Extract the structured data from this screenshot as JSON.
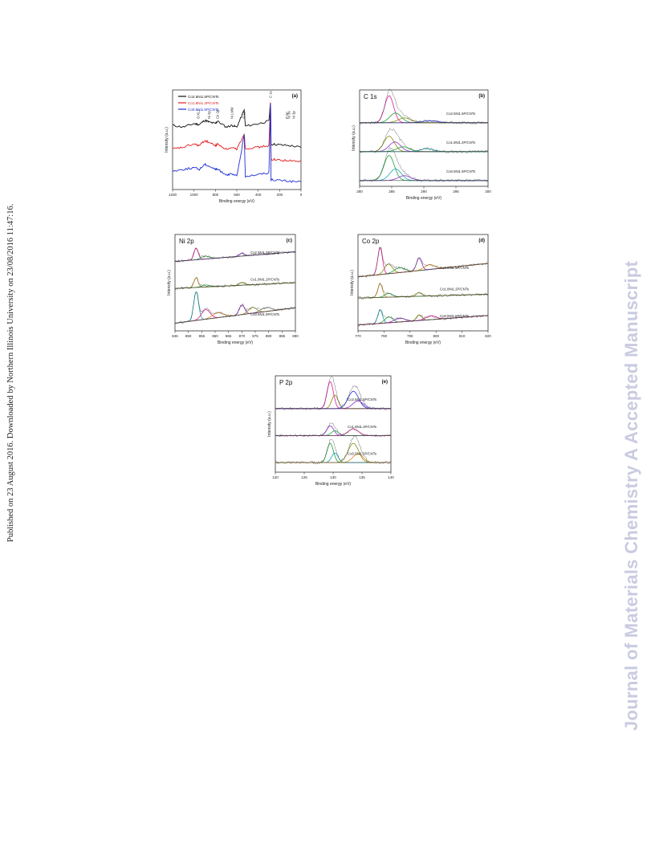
{
  "side_text": "Published on 23 August 2016. Downloaded by Northern Illinois University on 23/08/2016 11:47:16.",
  "watermark": "Journal of Materials Chemistry A Accepted Manuscript",
  "colors": {
    "black": "#111111",
    "red": "#e11d1d",
    "blue": "#1f2fd6",
    "magenta": "#e0189c",
    "green": "#1aa33a",
    "olive": "#8a8a10",
    "cyan": "#17a2b8",
    "purple": "#8d2cc9",
    "orange": "#d98a1a",
    "gray": "#888888"
  },
  "chart_data": [
    {
      "panel": "(a)",
      "type": "line",
      "title": "",
      "xlabel": "Binding energy (eV)",
      "ylabel": "Intensity (a.u.)",
      "xlim": [
        1200,
        0
      ],
      "x_ticks": [
        "1200",
        "1000",
        "800",
        "600",
        "400",
        "200",
        "0"
      ],
      "x_reversed": true,
      "legend": [
        "Co2.5Ni1.5P/CNTs",
        "Co1.8Ni1.2P/CNTs",
        "Co0.5Ni1.5P/CNTs"
      ],
      "peak_labels": [
        {
          "text": "O KLL",
          "x": 960
        },
        {
          "text": "Ni 2p",
          "x": 860
        },
        {
          "text": "Co 2p",
          "x": 780
        },
        {
          "text": "Ni LMM",
          "x": 645
        },
        {
          "text": "O 1s",
          "x": 531
        },
        {
          "text": "C 1s",
          "x": 285
        },
        {
          "text": "Ni 3s",
          "x": 111
        },
        {
          "text": "Ni 3p",
          "x": 68
        },
        {
          "text": "P 2p",
          "x": 130
        }
      ],
      "series": [
        {
          "name": "Co2.5Ni1.5P/CNTs",
          "color": "black",
          "x": [
            1200,
            1100,
            1000,
            950,
            900,
            860,
            800,
            780,
            700,
            645,
            600,
            531,
            520,
            400,
            300,
            285,
            280,
            200,
            100,
            0
          ],
          "y": [
            0.72,
            0.7,
            0.74,
            0.73,
            0.78,
            0.76,
            0.74,
            0.77,
            0.7,
            0.72,
            0.7,
            0.9,
            0.71,
            0.74,
            0.77,
            1.0,
            0.5,
            0.49,
            0.48,
            0.46
          ]
        },
        {
          "name": "Co1.8Ni1.2P/CNTs",
          "color": "red",
          "x": [
            1200,
            1100,
            1000,
            950,
            900,
            860,
            800,
            780,
            700,
            645,
            600,
            531,
            520,
            400,
            300,
            285,
            280,
            200,
            100,
            0
          ],
          "y": [
            0.44,
            0.46,
            0.5,
            0.48,
            0.54,
            0.52,
            0.48,
            0.5,
            0.44,
            0.45,
            0.44,
            0.62,
            0.45,
            0.46,
            0.48,
            0.98,
            0.32,
            0.31,
            0.3,
            0.29
          ]
        },
        {
          "name": "Co0.5Ni1.5P/CNTs",
          "color": "blue",
          "x": [
            1200,
            1100,
            1000,
            950,
            900,
            860,
            800,
            780,
            700,
            645,
            600,
            531,
            520,
            400,
            300,
            285,
            280,
            200,
            100,
            0
          ],
          "y": [
            0.18,
            0.2,
            0.22,
            0.2,
            0.26,
            0.24,
            0.2,
            0.2,
            0.14,
            0.14,
            0.12,
            0.6,
            0.12,
            0.14,
            0.16,
            0.98,
            0.08,
            0.07,
            0.06,
            0.05
          ]
        }
      ]
    },
    {
      "panel": "(b)",
      "type": "line",
      "title": "C 1s",
      "xlabel": "Binding energy (eV)",
      "ylabel": "Intensity (a.u.)",
      "xlim": [
        280,
        300
      ],
      "x_ticks": [
        "280",
        "285",
        "290",
        "295",
        "300"
      ],
      "trace_labels": [
        "Co2.5Ni1.5P/CNTs",
        "Co1.8Ni1.2P/CNTs",
        "Co0.5Ni1.5P/CNTs"
      ],
      "offsets": [
        0.66,
        0.36,
        0.06
      ],
      "traces": [
        {
          "label": "Co2.5Ni1.5P/CNTs",
          "peaks": [
            {
              "center": 284.6,
              "height": 0.28,
              "width": 0.7,
              "color": "magenta"
            },
            {
              "center": 285.6,
              "height": 0.1,
              "width": 0.9,
              "color": "green"
            },
            {
              "center": 287.0,
              "height": 0.05,
              "width": 1.0,
              "color": "olive"
            },
            {
              "center": 291.0,
              "height": 0.02,
              "width": 1.2,
              "color": "blue"
            }
          ]
        },
        {
          "label": "Co1.8Ni1.2P/CNTs",
          "peaks": [
            {
              "center": 284.6,
              "height": 0.16,
              "width": 0.8,
              "color": "olive"
            },
            {
              "center": 285.5,
              "height": 0.1,
              "width": 0.9,
              "color": "purple"
            },
            {
              "center": 286.8,
              "height": 0.05,
              "width": 1.0,
              "color": "green"
            },
            {
              "center": 290.5,
              "height": 0.03,
              "width": 1.0,
              "color": "cyan"
            }
          ]
        },
        {
          "label": "Co0.5Ni1.5P/CNTs",
          "peaks": [
            {
              "center": 284.6,
              "height": 0.26,
              "width": 0.8,
              "color": "green"
            },
            {
              "center": 285.6,
              "height": 0.12,
              "width": 0.9,
              "color": "cyan"
            },
            {
              "center": 287.0,
              "height": 0.05,
              "width": 1.0,
              "color": "purple"
            }
          ]
        }
      ]
    },
    {
      "panel": "(c)",
      "type": "line",
      "title": "Ni 2p",
      "xlabel": "Binding energy (eV)",
      "ylabel": "Intensity (a.u.)",
      "xlim": [
        845,
        890
      ],
      "x_ticks": [
        "845",
        "850",
        "855",
        "860",
        "865",
        "870",
        "875",
        "880",
        "885",
        "890"
      ],
      "trace_labels": [
        "Co2.5Ni1.5P/CNTs",
        "Co1.8Ni1.2P/CNTs",
        "Co0.5Ni1.5P/CNTs"
      ],
      "offsets": [
        0.72,
        0.44,
        0.08
      ],
      "traces": [
        {
          "label": "Co2.5Ni1.5P/CNTs",
          "baseline_slope": 0.1,
          "peaks": [
            {
              "center": 852.9,
              "height": 0.12,
              "width": 0.8,
              "color": "magenta"
            },
            {
              "center": 856.3,
              "height": 0.03,
              "width": 1.5,
              "color": "green"
            },
            {
              "center": 870.0,
              "height": 0.03,
              "width": 1.0,
              "color": "purple"
            }
          ]
        },
        {
          "label": "Co1.8Ni1.2P/CNTs",
          "baseline_slope": 0.06,
          "peaks": [
            {
              "center": 852.9,
              "height": 0.1,
              "width": 0.8,
              "color": "orange"
            },
            {
              "center": 856.5,
              "height": 0.02,
              "width": 1.5,
              "color": "green"
            },
            {
              "center": 870.0,
              "height": 0.03,
              "width": 1.0,
              "color": "olive"
            }
          ]
        },
        {
          "label": "Co0.5Ni1.5P/CNTs",
          "baseline_slope": 0.16,
          "peaks": [
            {
              "center": 852.9,
              "height": 0.3,
              "width": 0.9,
              "color": "cyan"
            },
            {
              "center": 856.5,
              "height": 0.1,
              "width": 1.6,
              "color": "magenta"
            },
            {
              "center": 861.0,
              "height": 0.05,
              "width": 2.0,
              "color": "orange"
            },
            {
              "center": 870.0,
              "height": 0.1,
              "width": 1.0,
              "color": "purple"
            },
            {
              "center": 874.0,
              "height": 0.06,
              "width": 1.5,
              "color": "olive"
            },
            {
              "center": 879.0,
              "height": 0.04,
              "width": 2.0,
              "color": "gray"
            }
          ]
        }
      ]
    },
    {
      "panel": "(d)",
      "type": "line",
      "title": "Co 2p",
      "xlabel": "Binding energy (eV)",
      "ylabel": "Intensity (a.u.)",
      "xlim": [
        770,
        820
      ],
      "x_ticks": [
        "770",
        "780",
        "790",
        "800",
        "810",
        "820"
      ],
      "trace_labels": [
        "Co2.5Ni1.5P/CNTs",
        "Co1.8Ni1.2P/CNTs",
        "Co0.5Ni1.5P/CNTs"
      ],
      "offsets": [
        0.56,
        0.34,
        0.06
      ],
      "traces": [
        {
          "label": "Co2.5Ni1.5P/CNTs",
          "baseline_slope": 0.14,
          "peaks": [
            {
              "center": 778.5,
              "height": 0.28,
              "width": 0.9,
              "color": "magenta"
            },
            {
              "center": 781.7,
              "height": 0.1,
              "width": 1.5,
              "color": "olive"
            },
            {
              "center": 786.0,
              "height": 0.05,
              "width": 2.0,
              "color": "green"
            },
            {
              "center": 793.5,
              "height": 0.13,
              "width": 1.0,
              "color": "purple"
            },
            {
              "center": 797.5,
              "height": 0.05,
              "width": 2.0,
              "color": "orange"
            }
          ]
        },
        {
          "label": "Co1.8Ni1.2P/CNTs",
          "baseline_slope": 0.04,
          "peaks": [
            {
              "center": 778.5,
              "height": 0.14,
              "width": 0.9,
              "color": "orange"
            },
            {
              "center": 781.8,
              "height": 0.04,
              "width": 1.5,
              "color": "green"
            },
            {
              "center": 793.5,
              "height": 0.04,
              "width": 1.0,
              "color": "olive"
            }
          ]
        },
        {
          "label": "Co0.5Ni1.5P/CNTs",
          "baseline_slope": 0.1,
          "peaks": [
            {
              "center": 778.5,
              "height": 0.14,
              "width": 0.9,
              "color": "cyan"
            },
            {
              "center": 781.8,
              "height": 0.06,
              "width": 1.5,
              "color": "green"
            },
            {
              "center": 786.0,
              "height": 0.04,
              "width": 2.0,
              "color": "purple"
            },
            {
              "center": 793.5,
              "height": 0.06,
              "width": 1.0,
              "color": "olive"
            },
            {
              "center": 798.0,
              "height": 0.04,
              "width": 2.0,
              "color": "magenta"
            }
          ]
        }
      ]
    },
    {
      "panel": "(e)",
      "type": "line",
      "title": "P 2p",
      "xlabel": "Binding energy (eV)",
      "ylabel": "Intensity (a.u.)",
      "xlim": [
        120,
        140
      ],
      "x_ticks": [
        "120",
        "125",
        "130",
        "135",
        "140"
      ],
      "trace_labels": [
        "Co2.5Ni1.5P/CNTs",
        "Co1.8Ni1.2P/CNTs",
        "Co0.5Ni1.5P/CNTs"
      ],
      "offsets": [
        0.66,
        0.38,
        0.1
      ],
      "traces": [
        {
          "label": "Co2.5Ni1.5P/CNTs",
          "baseline_slope": 0.0,
          "peaks": [
            {
              "center": 129.5,
              "height": 0.28,
              "width": 0.55,
              "color": "magenta"
            },
            {
              "center": 130.3,
              "height": 0.14,
              "width": 0.55,
              "color": "olive"
            },
            {
              "center": 133.5,
              "height": 0.18,
              "width": 0.9,
              "color": "blue"
            },
            {
              "center": 134.3,
              "height": 0.08,
              "width": 0.9,
              "color": "purple"
            }
          ]
        },
        {
          "label": "Co1.8Ni1.2P/CNTs",
          "baseline_slope": 0.0,
          "peaks": [
            {
              "center": 129.5,
              "height": 0.1,
              "width": 0.6,
              "color": "purple"
            },
            {
              "center": 130.3,
              "height": 0.05,
              "width": 0.6,
              "color": "green"
            },
            {
              "center": 133.5,
              "height": 0.07,
              "width": 0.9,
              "color": "magenta"
            }
          ]
        },
        {
          "label": "Co0.5Ni1.5P/CNTs",
          "baseline_slope": 0.0,
          "peaks": [
            {
              "center": 129.5,
              "height": 0.2,
              "width": 0.55,
              "color": "green"
            },
            {
              "center": 130.3,
              "height": 0.1,
              "width": 0.55,
              "color": "cyan"
            },
            {
              "center": 133.5,
              "height": 0.2,
              "width": 0.9,
              "color": "olive"
            },
            {
              "center": 134.3,
              "height": 0.09,
              "width": 0.9,
              "color": "orange"
            }
          ]
        }
      ]
    }
  ]
}
